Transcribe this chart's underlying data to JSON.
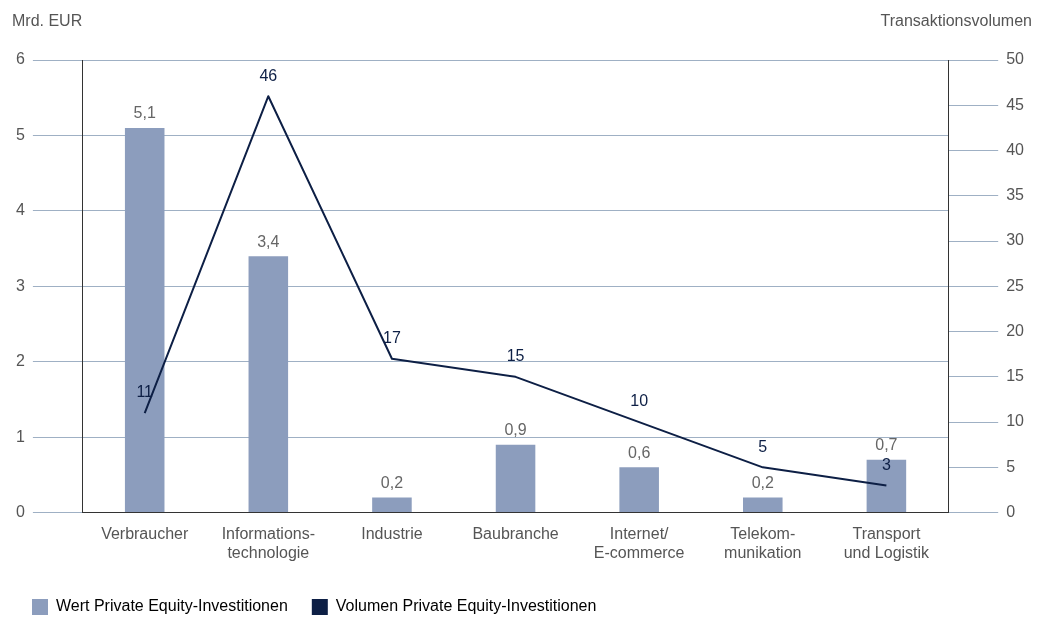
{
  "chart_data": {
    "type": "bar",
    "ylabel": "Mrd. EUR",
    "y2label": "Transaktionsvolumen",
    "categories": [
      "Verbraucher",
      "Informations-\ntechnologie",
      "Industrie",
      "Baubranche",
      "Internet/\nE-commerce",
      "Telekom-\nmunikation",
      "Transport\nund Logistik"
    ],
    "series": [
      {
        "name": "Wert Private Equity-Investitionen",
        "color": "#8c9dbd",
        "values": [
          5.1,
          3.4,
          0.2,
          0.9,
          0.6,
          0.2,
          0.7
        ],
        "value_labels": [
          "5,1",
          "3,4",
          "0,2",
          "0,9",
          "0,6",
          "0,2",
          "0,7"
        ]
      },
      {
        "name": "Volumen Private Equity-Investitionen",
        "type": "line",
        "axis": "y2",
        "color": "#0d1f45",
        "marker": "none",
        "values": [
          11,
          46,
          17,
          15,
          10,
          5,
          3
        ],
        "value_labels": [
          "11",
          "46",
          "17",
          "15",
          "10",
          "5",
          "3"
        ]
      }
    ],
    "ylim": [
      0,
      6
    ],
    "yticks": [
      0,
      1,
      2,
      3,
      4,
      5,
      6
    ],
    "y2lim": [
      0,
      50
    ],
    "y2ticks": [
      0,
      5,
      10,
      15,
      20,
      25,
      30,
      35,
      40,
      45,
      50
    ],
    "grid": "y",
    "legend": "bottom left"
  }
}
